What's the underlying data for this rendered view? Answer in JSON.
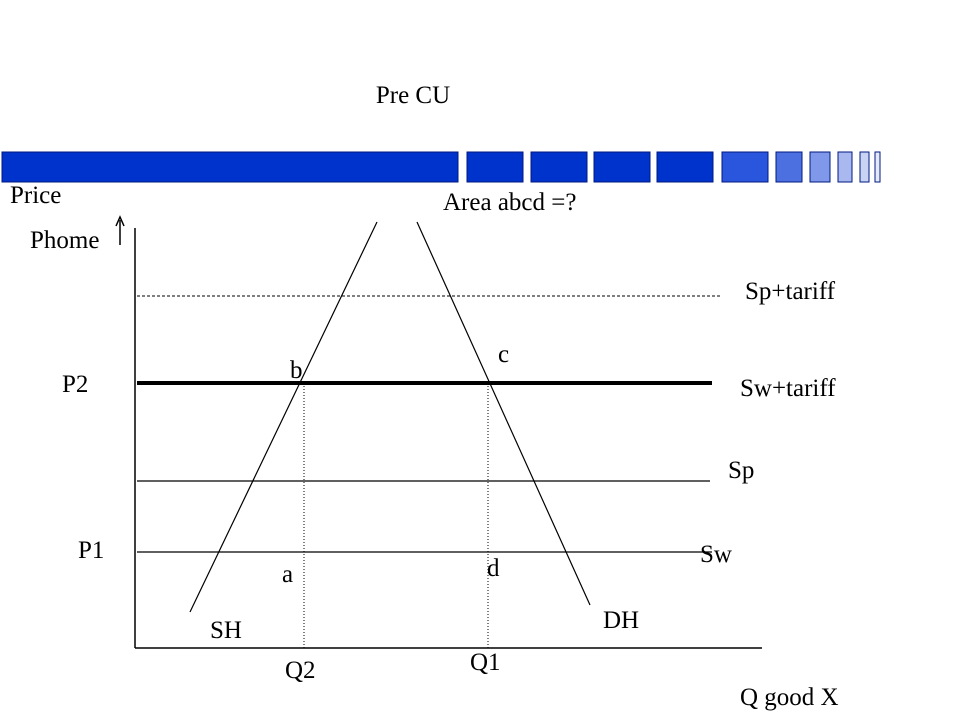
{
  "title": "Pre CU",
  "axes": {
    "y_label": "Price",
    "y_sub_label": "Phome",
    "x_label": "Q good X"
  },
  "annotation": "Area abcd =?",
  "lines": {
    "sp_tariff": "Sp+tariff",
    "sw_tariff": "Sw+tariff",
    "sp": "Sp",
    "sw": "Sw",
    "supply_home": "SH",
    "demand_home": "DH"
  },
  "prices": {
    "p2": "P2",
    "p1": "P1"
  },
  "quantities": {
    "q2": "Q2",
    "q1": "Q1"
  },
  "points": {
    "a": "a",
    "b": "b",
    "c": "c",
    "d": "d"
  }
}
